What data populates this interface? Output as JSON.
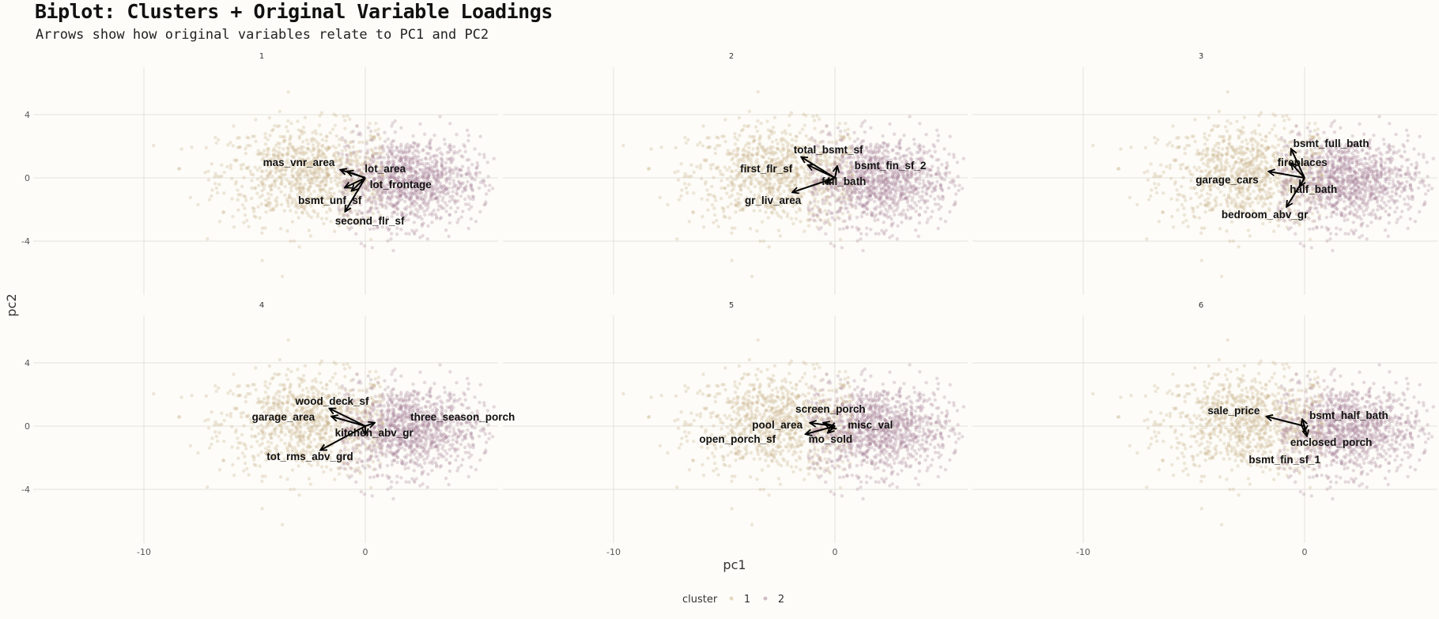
{
  "chart_data": {
    "type": "scatter",
    "title": "Biplot: Clusters + Original Variable Loadings",
    "subtitle": "Arrows show how original variables relate to PC1 and PC2",
    "xlabel": "pc1",
    "ylabel": "pc2",
    "xlim": [
      -15,
      6
    ],
    "ylim": [
      -7.4,
      7
    ],
    "x_ticks": [
      -10,
      0
    ],
    "x_tick_labels": [
      "-10",
      "0"
    ],
    "y_ticks": [
      4,
      0,
      -4
    ],
    "y_tick_labels": [
      "4",
      "0",
      "-4"
    ],
    "legend": {
      "title": "cluster",
      "position": "bottom",
      "entries": [
        {
          "label": "1",
          "color": "#c9b48a"
        },
        {
          "label": "2",
          "color": "#a77e98"
        }
      ]
    },
    "grid": true,
    "clusters": [
      {
        "name": "1",
        "color": "#c9b48a",
        "center": [
          -2.6,
          0.2
        ],
        "spread": [
          2.0,
          1.6
        ],
        "count": 900
      },
      {
        "name": "2",
        "color": "#a77e98",
        "center": [
          2.0,
          -0.2
        ],
        "spread": [
          1.6,
          1.4
        ],
        "count": 1100
      }
    ],
    "panels": [
      {
        "strip": "1",
        "loadings": [
          {
            "var": "mas_vnr_area",
            "x": -1.1,
            "y": 0.5,
            "lx": -3.0,
            "ly": 1.0
          },
          {
            "var": "lot_area",
            "x": -0.8,
            "y": 0.4,
            "lx": 0.9,
            "ly": 0.6
          },
          {
            "var": "lot_frontage",
            "x": -0.6,
            "y": -0.8,
            "lx": 1.6,
            "ly": -0.4
          },
          {
            "var": "bsmt_unf_sf",
            "x": -0.9,
            "y": -0.6,
            "lx": -1.6,
            "ly": -1.4
          },
          {
            "var": "second_flr_sf",
            "x": -0.9,
            "y": -2.1,
            "lx": 0.2,
            "ly": -2.7
          }
        ]
      },
      {
        "strip": "2",
        "loadings": [
          {
            "var": "total_bsmt_sf",
            "x": -1.5,
            "y": 1.3,
            "lx": -0.3,
            "ly": 1.8
          },
          {
            "var": "first_flr_sf",
            "x": -1.2,
            "y": 0.8,
            "lx": -3.1,
            "ly": 0.6
          },
          {
            "var": "bsmt_fin_sf_2",
            "x": 0.1,
            "y": 0.7,
            "lx": 2.5,
            "ly": 0.8
          },
          {
            "var": "full_bath",
            "x": -0.4,
            "y": -0.3,
            "lx": 0.4,
            "ly": -0.2
          },
          {
            "var": "gr_liv_area",
            "x": -1.9,
            "y": -0.9,
            "lx": -2.8,
            "ly": -1.4
          }
        ]
      },
      {
        "strip": "3",
        "loadings": [
          {
            "var": "bsmt_full_bath",
            "x": -0.6,
            "y": 1.8,
            "lx": 1.2,
            "ly": 2.2
          },
          {
            "var": "fireplaces",
            "x": -0.6,
            "y": 0.9,
            "lx": -0.1,
            "ly": 1.0
          },
          {
            "var": "garage_cars",
            "x": -1.6,
            "y": 0.4,
            "lx": -3.5,
            "ly": -0.1
          },
          {
            "var": "half_bath",
            "x": -0.2,
            "y": -0.5,
            "lx": 0.4,
            "ly": -0.7
          },
          {
            "var": "bedroom_abv_gr",
            "x": -0.8,
            "y": -1.8,
            "lx": -1.8,
            "ly": -2.3
          }
        ]
      },
      {
        "strip": "4",
        "loadings": [
          {
            "var": "wood_deck_sf",
            "x": -1.6,
            "y": 1.1,
            "lx": -1.5,
            "ly": 1.6
          },
          {
            "var": "garage_area",
            "x": -1.5,
            "y": 0.6,
            "lx": -3.7,
            "ly": 0.6
          },
          {
            "var": "three_season_porch",
            "x": 0.4,
            "y": 0.2,
            "lx": 4.4,
            "ly": 0.6
          },
          {
            "var": "kitchen_abv_gr",
            "x": 0.0,
            "y": -0.5,
            "lx": 0.4,
            "ly": -0.4
          },
          {
            "var": "tot_rms_abv_grd",
            "x": -2.0,
            "y": -1.5,
            "lx": -2.5,
            "ly": -1.9
          }
        ]
      },
      {
        "strip": "5",
        "loadings": [
          {
            "var": "screen_porch",
            "x": -0.5,
            "y": 0.2,
            "lx": -0.2,
            "ly": 1.1
          },
          {
            "var": "pool_area",
            "x": -1.1,
            "y": 0.2,
            "lx": -2.6,
            "ly": 0.1
          },
          {
            "var": "misc_val",
            "x": -0.2,
            "y": -0.1,
            "lx": 1.6,
            "ly": 0.1
          },
          {
            "var": "open_porch_sf",
            "x": -1.3,
            "y": -0.5,
            "lx": -4.4,
            "ly": -0.8
          },
          {
            "var": "mo_sold",
            "x": -0.3,
            "y": -0.4,
            "lx": -0.2,
            "ly": -0.8
          }
        ]
      },
      {
        "strip": "6",
        "loadings": [
          {
            "var": "sale_price",
            "x": -1.7,
            "y": 0.6,
            "lx": -3.2,
            "ly": 1.0
          },
          {
            "var": "bsmt_half_bath",
            "x": -0.1,
            "y": 0.4,
            "lx": 2.0,
            "ly": 0.7
          },
          {
            "var": "enclosed_porch",
            "x": 0.1,
            "y": -0.6,
            "lx": 1.2,
            "ly": -1.0
          },
          {
            "var": "bsmt_fin_sf_1",
            "x": 0.0,
            "y": -0.3,
            "lx": -0.9,
            "ly": -2.1
          }
        ]
      }
    ]
  }
}
